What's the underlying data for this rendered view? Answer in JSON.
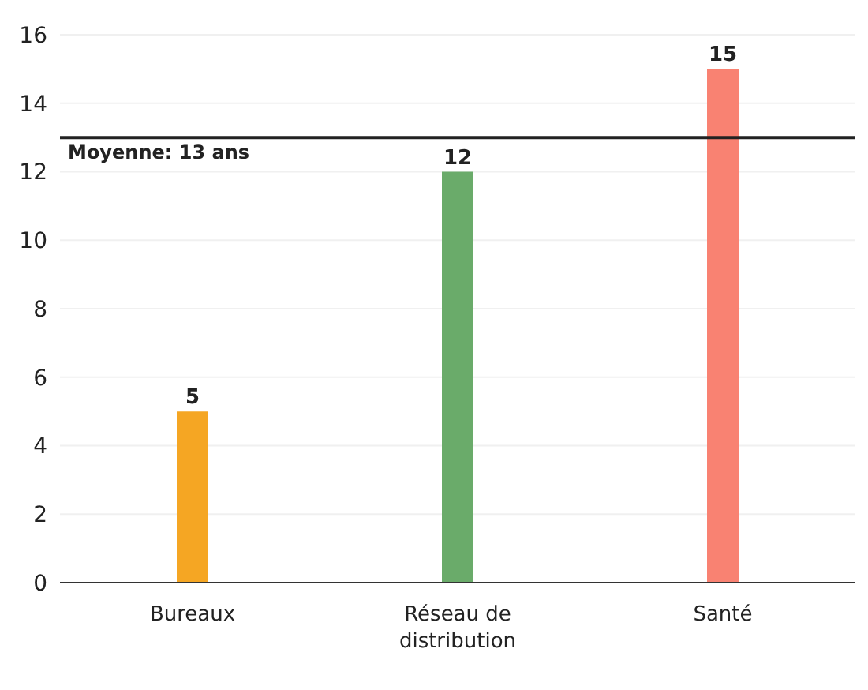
{
  "chart_data": {
    "type": "bar",
    "categories": [
      "Bureaux",
      "Réseau de distribution",
      "Santé"
    ],
    "values": [
      5,
      12,
      15
    ],
    "colors": [
      "#f5a623",
      "#6aab6a",
      "#f98272"
    ],
    "ylim": [
      0,
      16
    ],
    "yticks": [
      0,
      2,
      4,
      6,
      8,
      10,
      12,
      14,
      16
    ],
    "grid": "y",
    "data_labels": true,
    "ref_lines": [
      {
        "axis": "y",
        "value": 13,
        "label": "Moyenne: 13 ans",
        "color": "#222222"
      }
    ]
  }
}
